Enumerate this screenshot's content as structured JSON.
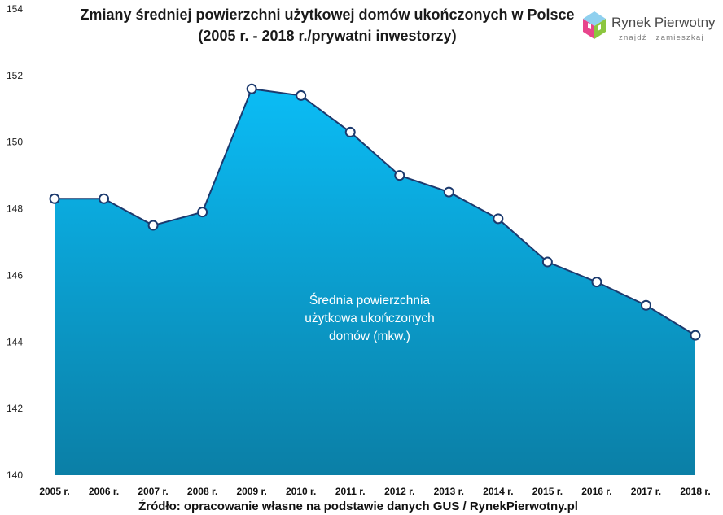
{
  "chart_data": {
    "type": "area",
    "title_lines": [
      "Zmiany średniej powierzchni użytkowej domów ukończonych w Polsce",
      "(2005 r. - 2018 r./prywatni inwestorzy)"
    ],
    "categories": [
      "2005 r.",
      "2006 r.",
      "2007 r.",
      "2008 r.",
      "2009 r.",
      "2010 r.",
      "2011 r.",
      "2012 r.",
      "2013 r.",
      "2014 r.",
      "2015 r.",
      "2016 r.",
      "2017 r.",
      "2018 r."
    ],
    "series": [
      {
        "name": "Średnia powierzchnia użytkowa ukończonych domów (mkw.)",
        "values": [
          148.3,
          148.3,
          147.5,
          147.9,
          151.6,
          151.4,
          150.3,
          149.0,
          148.5,
          147.7,
          146.4,
          145.8,
          145.1,
          144.2
        ]
      }
    ],
    "series_label_lines": [
      "Średnia powierzchnia",
      "użytkowa ukończonych",
      "domów (mkw.)"
    ],
    "ylim": [
      140,
      154
    ],
    "yticks": [
      "140",
      "142",
      "144",
      "146",
      "148",
      "150",
      "152",
      "154"
    ],
    "xlabel": "",
    "ylabel": "",
    "grid": false,
    "legend": "inside-area"
  },
  "colors": {
    "area_top": "#0bbcf5",
    "area_bottom": "#0b7fa6",
    "line": "#1c3a6e",
    "marker_fill": "#ffffff"
  },
  "brand": {
    "name": "Rynek Pierwotny",
    "tagline": "znajdź i zamieszkaj",
    "icon": "house-logo-icon"
  },
  "source": "Źródło: opracowanie własne na podstawie danych GUS / RynekPierwotny.pl"
}
